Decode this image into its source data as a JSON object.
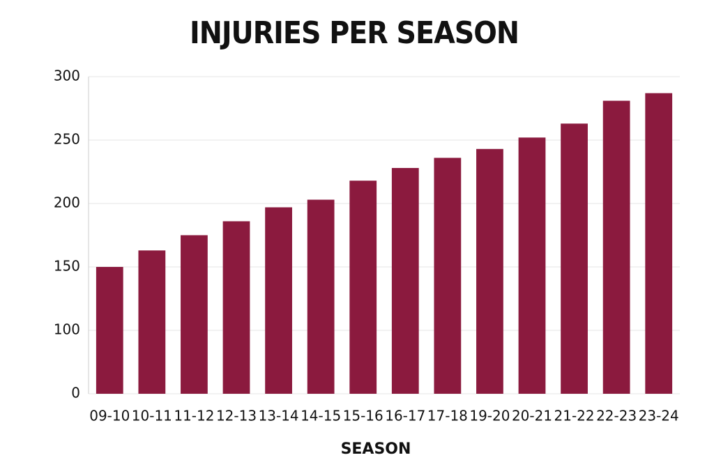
{
  "chart_data": {
    "type": "bar",
    "title": "INJURIES PER SEASON",
    "x_label": "SEASON",
    "categories": [
      "09-10",
      "10-11",
      "11-12",
      "12-13",
      "13-14",
      "14-15",
      "15-16",
      "16-17",
      "17-18",
      "19-20",
      "20-21",
      "21-22",
      "22-23",
      "23-24"
    ],
    "values": [
      150,
      163,
      175,
      186,
      197,
      203,
      218,
      228,
      236,
      243,
      252,
      263,
      281,
      287
    ],
    "color": "#8b1a3e",
    "ylim": [
      0,
      300
    ],
    "yticks": [
      0,
      100,
      150,
      200,
      250,
      300
    ],
    "grid": true
  }
}
